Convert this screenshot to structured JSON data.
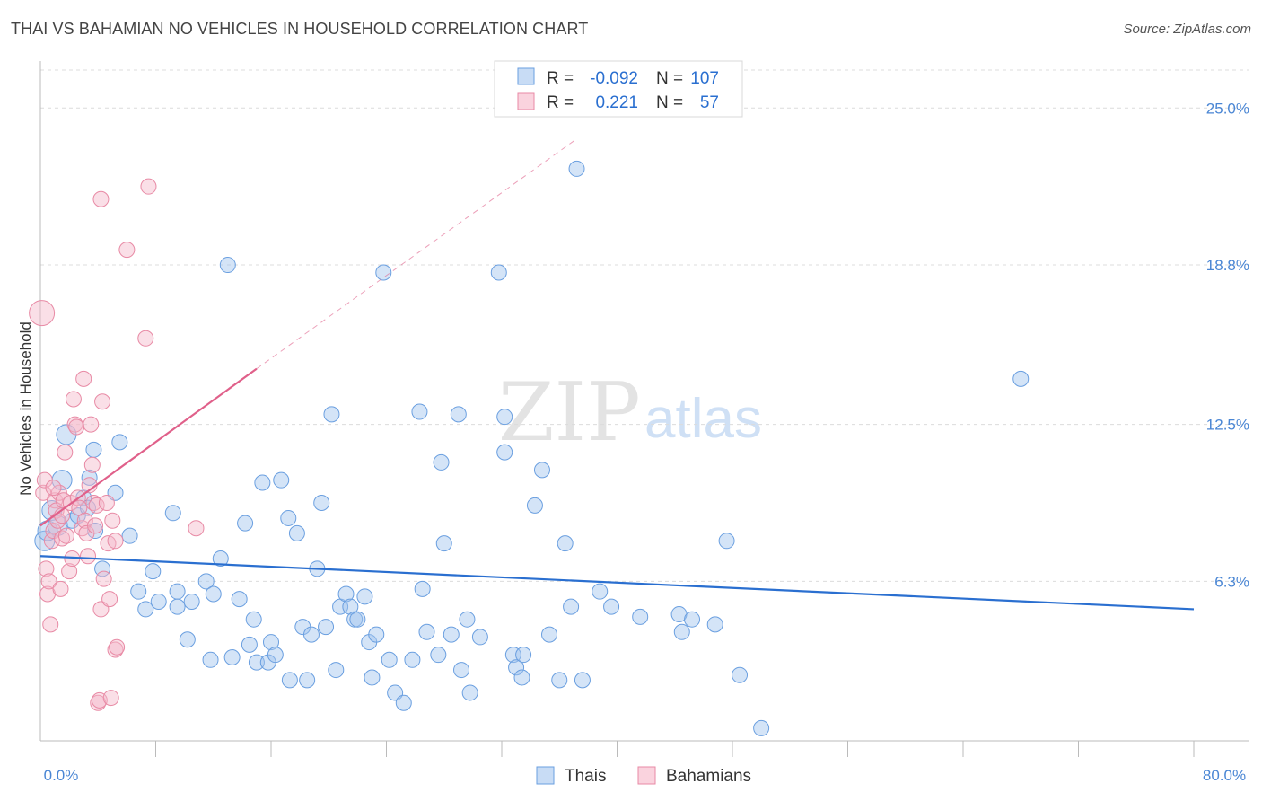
{
  "header": {
    "title": "THAI VS BAHAMIAN NO VEHICLES IN HOUSEHOLD CORRELATION CHART",
    "source": "Source: ZipAtlas.com"
  },
  "colors": {
    "thai": "#9fc3ee",
    "thai_stroke": "#6a9fe0",
    "thai_line": "#2a6fd0",
    "bahamian": "#f5b8c9",
    "bahamian_stroke": "#e88aa5",
    "bahamian_line": "#e0608a",
    "axis_text": "#4a86d4",
    "grid": "#dcdcdc"
  },
  "watermark": {
    "zip": "ZIP",
    "atlas": "atlas"
  },
  "stats_legend": {
    "rows": [
      {
        "r_label": "R =",
        "r_value": "-0.092",
        "n_label": "N =",
        "n_value": "107"
      },
      {
        "r_label": "R =",
        "r_value": "0.221",
        "n_label": "N =",
        "n_value": "57"
      }
    ]
  },
  "bottom_legend": {
    "thai": "Thais",
    "bahamian": "Bahamians"
  },
  "chart_data": {
    "type": "scatter",
    "title": "THAI VS BAHAMIAN NO VEHICLES IN HOUSEHOLD CORRELATION CHART",
    "xlabel": "",
    "ylabel": "No Vehicles in Household",
    "xlim": [
      0,
      80
    ],
    "ylim": [
      0,
      26.5
    ],
    "x_tick_labels": [
      "0.0%",
      "80.0%"
    ],
    "y_ticks": [
      6.3,
      12.5,
      18.8,
      25.0
    ],
    "y_tick_labels": [
      "6.3%",
      "12.5%",
      "18.8%",
      "25.0%"
    ],
    "series": [
      {
        "name": "Thais",
        "r": -0.092,
        "n": 107,
        "trend": {
          "x0": 0,
          "y0": 7.3,
          "x1": 80,
          "y1": 5.2
        },
        "points": [
          [
            0.3,
            7.9
          ],
          [
            0.5,
            8.3
          ],
          [
            0.8,
            9.1
          ],
          [
            1.2,
            8.5
          ],
          [
            1.5,
            10.3
          ],
          [
            1.8,
            12.1
          ],
          [
            2.2,
            8.7
          ],
          [
            2.6,
            8.9
          ],
          [
            3.0,
            9.6
          ],
          [
            3.3,
            9.2
          ],
          [
            3.8,
            8.3
          ],
          [
            4.3,
            6.8
          ],
          [
            3.7,
            11.5
          ],
          [
            3.4,
            10.4
          ],
          [
            5.2,
            9.8
          ],
          [
            5.5,
            11.8
          ],
          [
            6.2,
            8.1
          ],
          [
            6.8,
            5.9
          ],
          [
            7.3,
            5.2
          ],
          [
            7.8,
            6.7
          ],
          [
            8.2,
            5.5
          ],
          [
            9.2,
            9.0
          ],
          [
            9.5,
            5.3
          ],
          [
            9.5,
            5.9
          ],
          [
            10.2,
            4.0
          ],
          [
            10.5,
            5.5
          ],
          [
            11.5,
            6.3
          ],
          [
            12.0,
            5.8
          ],
          [
            11.8,
            3.2
          ],
          [
            12.5,
            7.2
          ],
          [
            13.0,
            18.8
          ],
          [
            13.3,
            3.3
          ],
          [
            13.8,
            5.6
          ],
          [
            14.2,
            8.6
          ],
          [
            14.5,
            3.8
          ],
          [
            14.8,
            4.8
          ],
          [
            15.0,
            3.1
          ],
          [
            15.4,
            10.2
          ],
          [
            15.8,
            3.1
          ],
          [
            16.0,
            3.9
          ],
          [
            16.3,
            3.4
          ],
          [
            16.7,
            10.3
          ],
          [
            17.2,
            8.8
          ],
          [
            17.3,
            2.4
          ],
          [
            17.8,
            8.2
          ],
          [
            18.2,
            4.5
          ],
          [
            18.5,
            2.4
          ],
          [
            18.8,
            4.2
          ],
          [
            19.2,
            6.8
          ],
          [
            19.5,
            9.4
          ],
          [
            19.8,
            4.5
          ],
          [
            20.2,
            12.9
          ],
          [
            20.5,
            2.8
          ],
          [
            20.8,
            5.3
          ],
          [
            21.2,
            5.8
          ],
          [
            21.5,
            5.3
          ],
          [
            21.8,
            4.8
          ],
          [
            22.0,
            4.8
          ],
          [
            22.5,
            5.7
          ],
          [
            22.8,
            3.9
          ],
          [
            23.0,
            2.5
          ],
          [
            23.3,
            4.2
          ],
          [
            23.8,
            18.5
          ],
          [
            24.2,
            3.2
          ],
          [
            24.6,
            1.9
          ],
          [
            25.2,
            1.5
          ],
          [
            25.8,
            3.2
          ],
          [
            26.3,
            13.0
          ],
          [
            26.5,
            6.0
          ],
          [
            26.8,
            4.3
          ],
          [
            27.8,
            11.0
          ],
          [
            27.6,
            3.4
          ],
          [
            28.0,
            7.8
          ],
          [
            28.5,
            4.2
          ],
          [
            29.0,
            12.9
          ],
          [
            29.2,
            2.8
          ],
          [
            29.6,
            4.8
          ],
          [
            29.8,
            1.9
          ],
          [
            30.5,
            4.1
          ],
          [
            31.8,
            18.5
          ],
          [
            32.2,
            12.8
          ],
          [
            32.2,
            11.4
          ],
          [
            32.8,
            3.4
          ],
          [
            33.0,
            2.9
          ],
          [
            33.4,
            2.5
          ],
          [
            33.5,
            3.4
          ],
          [
            34.3,
            9.3
          ],
          [
            34.8,
            10.7
          ],
          [
            35.3,
            4.2
          ],
          [
            36.0,
            2.4
          ],
          [
            36.4,
            7.8
          ],
          [
            36.8,
            5.3
          ],
          [
            37.2,
            22.6
          ],
          [
            37.6,
            2.4
          ],
          [
            38.8,
            5.9
          ],
          [
            39.6,
            5.3
          ],
          [
            41.6,
            4.9
          ],
          [
            44.3,
            5.0
          ],
          [
            44.5,
            4.3
          ],
          [
            45.2,
            4.8
          ],
          [
            47.6,
            7.9
          ],
          [
            46.8,
            4.6
          ],
          [
            50.0,
            0.5
          ],
          [
            68.0,
            14.3
          ],
          [
            48.5,
            2.6
          ]
        ]
      },
      {
        "name": "Bahamians",
        "r": 0.221,
        "n": 57,
        "trend": {
          "x0": 0,
          "y0": 8.5,
          "x1": 15,
          "y1": 14.7
        },
        "trend_dashed": {
          "x0": 15,
          "y0": 14.7,
          "x1": 37,
          "y1": 23.7
        },
        "points": [
          [
            0.1,
            16.9
          ],
          [
            0.2,
            9.8
          ],
          [
            0.3,
            10.3
          ],
          [
            0.4,
            6.8
          ],
          [
            0.5,
            5.8
          ],
          [
            0.6,
            6.3
          ],
          [
            0.7,
            4.6
          ],
          [
            0.8,
            7.9
          ],
          [
            0.9,
            8.3
          ],
          [
            1.0,
            9.5
          ],
          [
            1.1,
            9.1
          ],
          [
            1.2,
            8.7
          ],
          [
            1.3,
            9.8
          ],
          [
            1.4,
            6.0
          ],
          [
            1.5,
            8.0
          ],
          [
            1.6,
            9.5
          ],
          [
            1.7,
            11.4
          ],
          [
            1.8,
            8.1
          ],
          [
            2.0,
            6.7
          ],
          [
            2.1,
            9.4
          ],
          [
            2.2,
            7.2
          ],
          [
            2.3,
            13.5
          ],
          [
            2.4,
            12.5
          ],
          [
            2.5,
            12.4
          ],
          [
            2.6,
            9.6
          ],
          [
            2.7,
            9.2
          ],
          [
            2.9,
            8.4
          ],
          [
            3.0,
            14.3
          ],
          [
            3.1,
            8.7
          ],
          [
            3.2,
            8.2
          ],
          [
            3.3,
            7.3
          ],
          [
            3.4,
            10.1
          ],
          [
            3.5,
            12.5
          ],
          [
            3.6,
            10.9
          ],
          [
            3.7,
            9.4
          ],
          [
            3.8,
            8.5
          ],
          [
            3.9,
            9.3
          ],
          [
            4.0,
            1.5
          ],
          [
            4.1,
            1.6
          ],
          [
            4.2,
            5.2
          ],
          [
            4.3,
            13.4
          ],
          [
            4.4,
            6.4
          ],
          [
            4.6,
            9.4
          ],
          [
            4.7,
            7.8
          ],
          [
            4.8,
            5.6
          ],
          [
            4.9,
            1.7
          ],
          [
            5.0,
            8.7
          ],
          [
            5.2,
            7.9
          ],
          [
            4.2,
            21.4
          ],
          [
            5.2,
            3.6
          ],
          [
            5.3,
            3.7
          ],
          [
            6.0,
            19.4
          ],
          [
            7.3,
            15.9
          ],
          [
            7.5,
            21.9
          ],
          [
            10.8,
            8.4
          ],
          [
            0.9,
            10.0
          ],
          [
            1.5,
            8.9
          ]
        ]
      }
    ]
  }
}
